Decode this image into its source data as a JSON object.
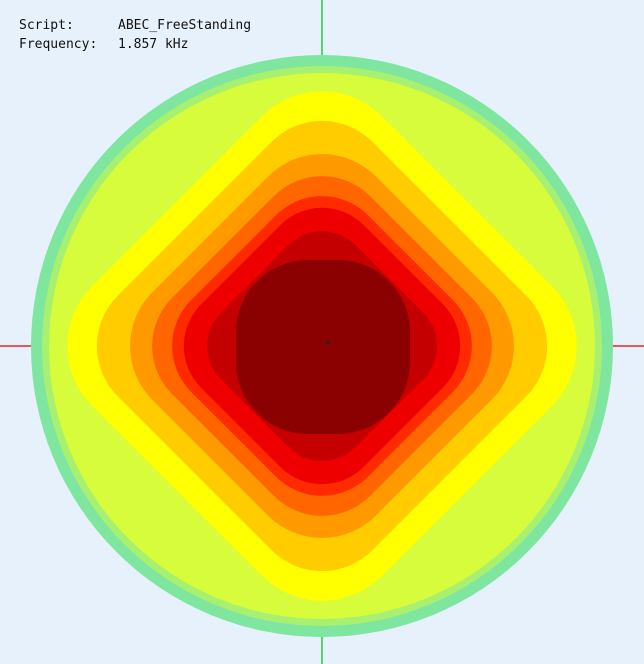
{
  "info": {
    "rows": [
      {
        "label": "Script:",
        "value": "ABEC_FreeStanding"
      },
      {
        "label": "Frequency:",
        "value": "1.857 kHz"
      }
    ]
  }
}
